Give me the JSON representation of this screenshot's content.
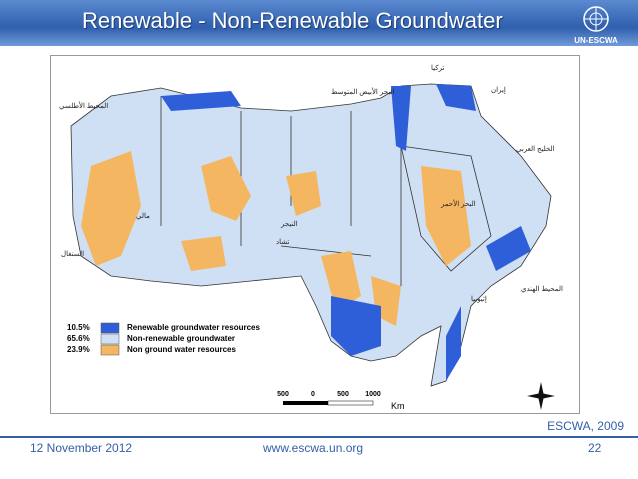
{
  "header": {
    "title": "Renewable - Non-Renewable Groundwater",
    "logo_text": "UN-ESCWA"
  },
  "map": {
    "legend": [
      {
        "percent": "10.5%",
        "label": "Renewable groundwater resources",
        "color": "#2f5fd8"
      },
      {
        "percent": "65.6%",
        "label": "Non-renewable groundwater",
        "color": "#cfe0f4"
      },
      {
        "percent": "23.9%",
        "label": "Non ground water resources",
        "color": "#f5b661"
      }
    ],
    "scale_labels": [
      "500",
      "0",
      "500",
      "1000"
    ],
    "scale_unit": "Km",
    "place_labels": [
      "تركيا",
      "إيران",
      "البحر الأبيض المتوسط",
      "المحيط الأطلسي",
      "الخليج العربي",
      "المحيط الهندي",
      "البحر الأحمر",
      "النيجر",
      "مالي",
      "تشاد",
      "السنغال",
      "إثيوبيا"
    ]
  },
  "source": "ESCWA, 2009",
  "footer": {
    "date": "12 November 2012",
    "url": "www.escwa.un.org",
    "page": "22"
  }
}
